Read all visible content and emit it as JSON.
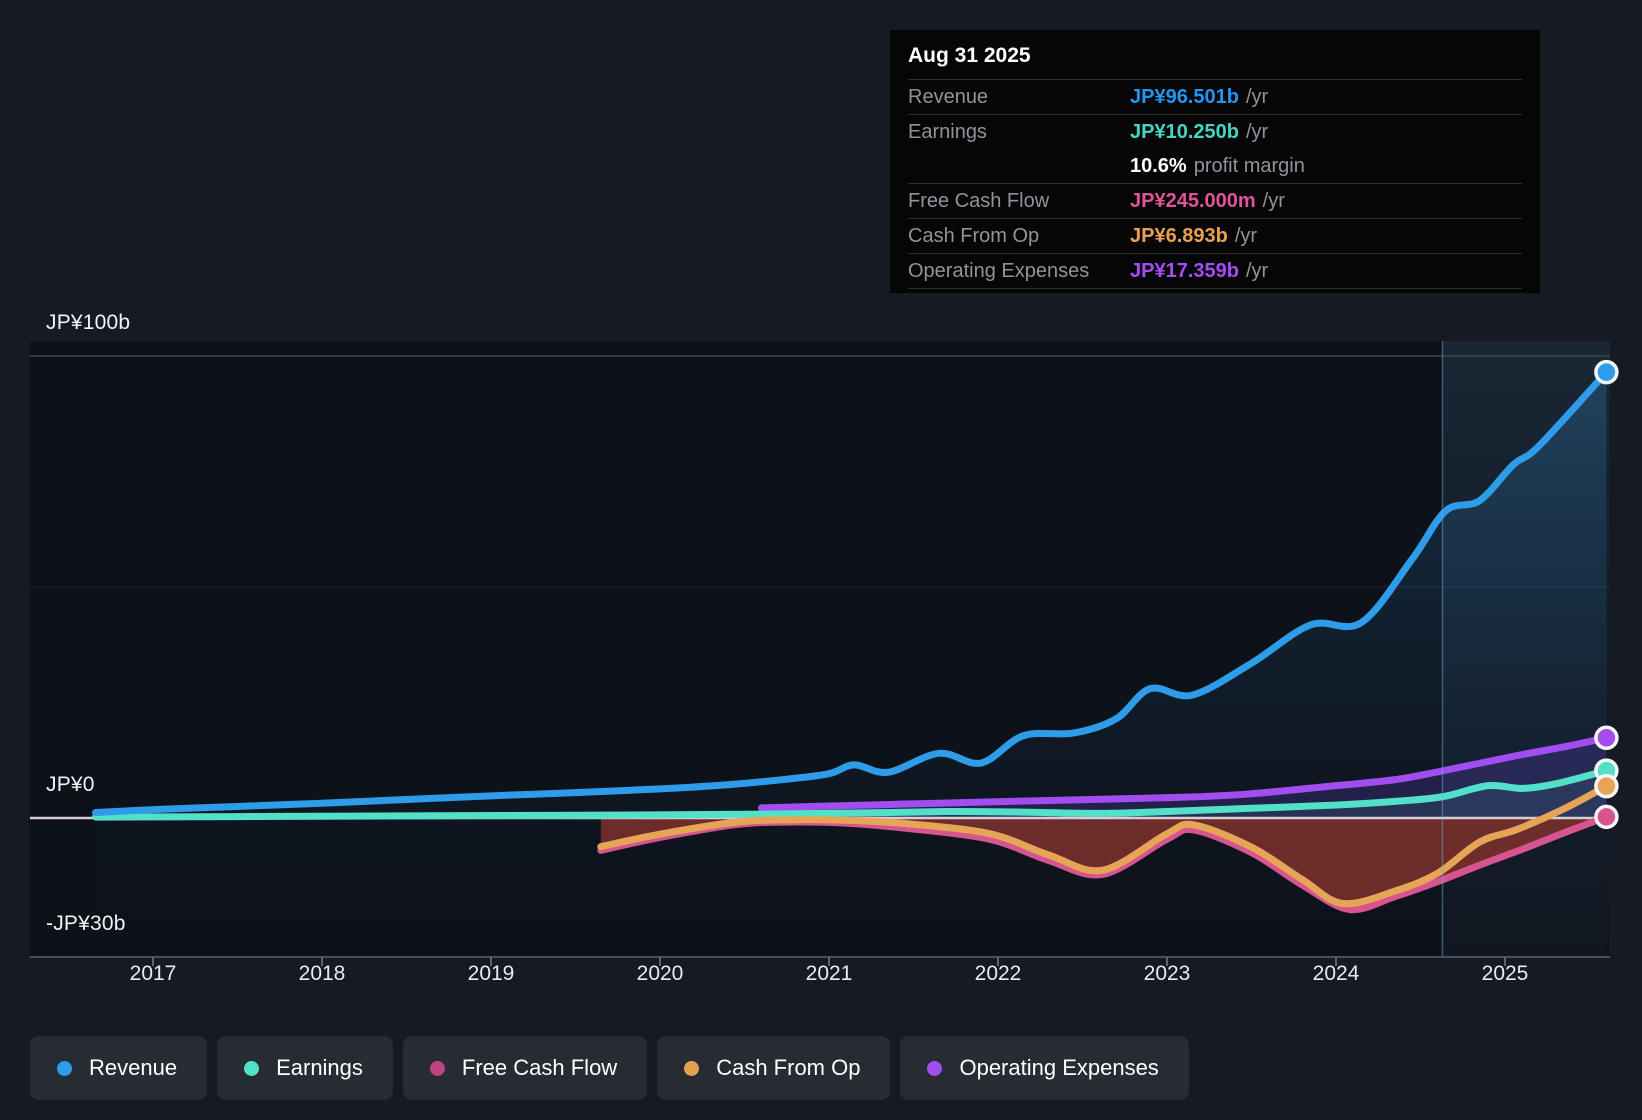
{
  "tooltip": {
    "date": "Aug 31 2025",
    "rows": [
      {
        "label": "Revenue",
        "value": "JP¥96.501b",
        "suffix": "/yr",
        "color": "#2196f3",
        "divider": true
      },
      {
        "label": "Earnings",
        "value": "JP¥10.250b",
        "suffix": "/yr",
        "color": "#45d6c3",
        "divider": true
      },
      {
        "label": "",
        "value": "10.6%",
        "suffix": "profit margin",
        "color": "#ffffff",
        "divider": false
      },
      {
        "label": "Free Cash Flow",
        "value": "JP¥245.000m",
        "suffix": "/yr",
        "color": "#e0549c",
        "divider": true
      },
      {
        "label": "Cash From Op",
        "value": "JP¥6.893b",
        "suffix": "/yr",
        "color": "#e9a14f",
        "divider": true
      },
      {
        "label": "Operating Expenses",
        "value": "JP¥17.359b",
        "suffix": "/yr",
        "color": "#a64ef5",
        "divider": true
      }
    ]
  },
  "legend": {
    "items": [
      {
        "label": "Revenue",
        "color": "#2e9ce8"
      },
      {
        "label": "Earnings",
        "color": "#52e0c8"
      },
      {
        "label": "Free Cash Flow",
        "color": "#bf4382"
      },
      {
        "label": "Cash From Op",
        "color": "#e2a14e"
      },
      {
        "label": "Operating Expenses",
        "color": "#a14df0"
      }
    ]
  },
  "chart_data": {
    "type": "line",
    "units": "JP¥ billions per year",
    "x_axis": {
      "ticks": [
        2017,
        2018,
        2019,
        2020,
        2021,
        2022,
        2023,
        2024,
        2025
      ],
      "start": 2016.3,
      "end": 2025.62
    },
    "y_axis": {
      "labels": [
        {
          "text": "JP¥100b",
          "value": 100
        },
        {
          "text": "JP¥0",
          "value": 0
        },
        {
          "text": "-JP¥30b",
          "value": -30
        }
      ],
      "minor_gridline_value": 50,
      "range": [
        -30,
        100
      ]
    },
    "divider_year": 2024.63,
    "highlight_note": "shaded band from Aug 2024 to Aug 2025",
    "series": [
      {
        "name": "Revenue",
        "color": "#2e9ce8",
        "points": [
          [
            2016.66,
            1.2
          ],
          [
            2017,
            1.8
          ],
          [
            2017.5,
            2.5
          ],
          [
            2018,
            3.2
          ],
          [
            2018.5,
            4.0
          ],
          [
            2019,
            4.8
          ],
          [
            2019.5,
            5.5
          ],
          [
            2020,
            6.3
          ],
          [
            2020.4,
            7.2
          ],
          [
            2020.75,
            8.4
          ],
          [
            2021,
            9.6
          ],
          [
            2021.15,
            11.5
          ],
          [
            2021.35,
            9.9
          ],
          [
            2021.65,
            14.0
          ],
          [
            2021.9,
            11.9
          ],
          [
            2022.15,
            17.8
          ],
          [
            2022.45,
            18.4
          ],
          [
            2022.7,
            21.5
          ],
          [
            2022.9,
            28.0
          ],
          [
            2023.15,
            26.6
          ],
          [
            2023.5,
            33.5
          ],
          [
            2023.85,
            41.8
          ],
          [
            2024.15,
            42.3
          ],
          [
            2024.45,
            56.0
          ],
          [
            2024.65,
            66.5
          ],
          [
            2024.85,
            68.7
          ],
          [
            2025.05,
            76.5
          ],
          [
            2025.2,
            80.5
          ],
          [
            2025.6,
            96.501
          ]
        ]
      },
      {
        "name": "Operating Expenses",
        "color": "#a14df0",
        "points": [
          [
            2020.6,
            2.2
          ],
          [
            2021,
            2.6
          ],
          [
            2021.65,
            3.2
          ],
          [
            2022.3,
            3.8
          ],
          [
            2023,
            4.4
          ],
          [
            2023.45,
            5.1
          ],
          [
            2024,
            7.0
          ],
          [
            2024.35,
            8.3
          ],
          [
            2024.63,
            10.2
          ],
          [
            2025.07,
            13.5
          ],
          [
            2025.35,
            15.4
          ],
          [
            2025.6,
            17.359
          ]
        ]
      },
      {
        "name": "Earnings",
        "color": "#52e0c8",
        "points": [
          [
            2016.66,
            0.2
          ],
          [
            2017.5,
            0.3
          ],
          [
            2018.5,
            0.45
          ],
          [
            2019.5,
            0.6
          ],
          [
            2020.5,
            0.8
          ],
          [
            2021.2,
            1.1
          ],
          [
            2021.7,
            1.4
          ],
          [
            2022.1,
            1.3
          ],
          [
            2022.6,
            1.0
          ],
          [
            2023,
            1.4
          ],
          [
            2023.5,
            2.1
          ],
          [
            2024,
            2.8
          ],
          [
            2024.35,
            3.6
          ],
          [
            2024.63,
            4.6
          ],
          [
            2024.9,
            7.0
          ],
          [
            2025.1,
            6.4
          ],
          [
            2025.3,
            7.4
          ],
          [
            2025.6,
            10.25
          ]
        ]
      },
      {
        "name": "Free Cash Flow",
        "color": "#d6548f",
        "points": [
          [
            2019.65,
            -7.0
          ],
          [
            2020,
            -4.2
          ],
          [
            2020.45,
            -1.4
          ],
          [
            2020.75,
            -0.9
          ],
          [
            2021.1,
            -1.1
          ],
          [
            2021.45,
            -2.2
          ],
          [
            2021.95,
            -4.6
          ],
          [
            2022.3,
            -9.2
          ],
          [
            2022.62,
            -12.2
          ],
          [
            2023,
            -4.6
          ],
          [
            2023.16,
            -2.6
          ],
          [
            2023.5,
            -7.5
          ],
          [
            2023.8,
            -14.5
          ],
          [
            2024.08,
            -19.8
          ],
          [
            2024.35,
            -17.0
          ],
          [
            2024.6,
            -13.8
          ],
          [
            2024.85,
            -10.2
          ],
          [
            2025.1,
            -6.8
          ],
          [
            2025.35,
            -3.2
          ],
          [
            2025.6,
            0.245
          ]
        ]
      },
      {
        "name": "Cash From Op",
        "color": "#e6a556",
        "points": [
          [
            2019.65,
            -6.2
          ],
          [
            2020,
            -3.5
          ],
          [
            2020.45,
            -0.9
          ],
          [
            2020.75,
            -0.4
          ],
          [
            2021.1,
            -0.5
          ],
          [
            2021.45,
            -1.2
          ],
          [
            2021.95,
            -3.4
          ],
          [
            2022.3,
            -8.0
          ],
          [
            2022.62,
            -11.3
          ],
          [
            2023,
            -3.4
          ],
          [
            2023.16,
            -1.5
          ],
          [
            2023.5,
            -6.3
          ],
          [
            2023.8,
            -13.3
          ],
          [
            2024.04,
            -18.5
          ],
          [
            2024.35,
            -15.8
          ],
          [
            2024.6,
            -12.0
          ],
          [
            2024.85,
            -5.2
          ],
          [
            2025.07,
            -2.5
          ],
          [
            2025.35,
            2.0
          ],
          [
            2025.6,
            6.893
          ]
        ]
      }
    ],
    "negative_fill_color": "#742f2b",
    "title": "",
    "legend_position": "bottom"
  }
}
